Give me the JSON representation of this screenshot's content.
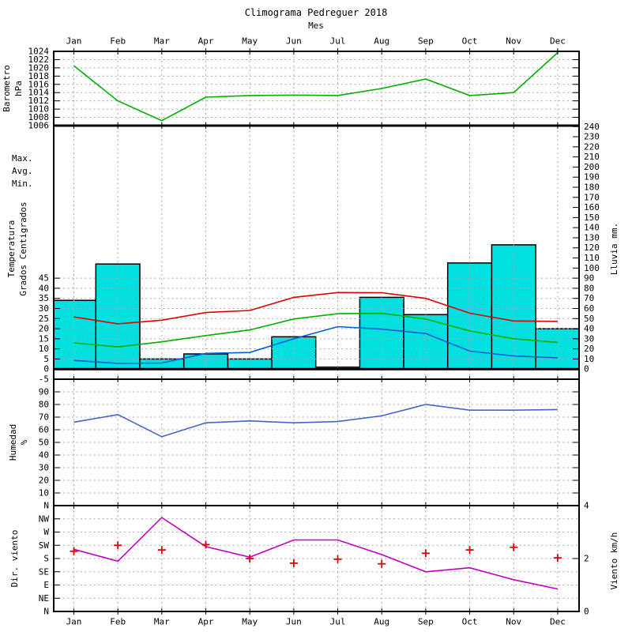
{
  "title": "Climograma Pedreguer 2018",
  "subtitle": "Mes",
  "months": [
    "Jan",
    "Feb",
    "Mar",
    "Apr",
    "May",
    "Jun",
    "Jul",
    "Aug",
    "Sep",
    "Oct",
    "Nov",
    "Dec"
  ],
  "colors": {
    "green": "#00b000",
    "red": "#e00000",
    "blue": "#0060d8",
    "humidity_line": "#4466c8",
    "cyan_fill": "#00e0e0",
    "cyan_label": "#00c8c8",
    "magenta": "#c000c0",
    "orange": "#c06020",
    "grid": "#a8a8a8",
    "axis": "#000000"
  },
  "chart_data": [
    {
      "name": "barometro",
      "type": "line",
      "ylabel_lines": [
        "Barometro",
        "hPa"
      ],
      "color_key": "green",
      "ylim": [
        1006,
        1024
      ],
      "yticks": [
        1006,
        1008,
        1010,
        1012,
        1014,
        1016,
        1018,
        1020,
        1022,
        1024
      ],
      "values": [
        1020.5,
        1012.0,
        1007.2,
        1012.9,
        1013.3,
        1013.4,
        1013.3,
        1015.0,
        1017.3,
        1013.3,
        1014.0,
        1023.7
      ]
    },
    {
      "name": "temperatura-lluvia",
      "type": "line+bar",
      "left_label_lines": [
        "Temperatura",
        "Grados Centigrados"
      ],
      "right_label": "Lluvia mm.",
      "left_ticks": [
        -5,
        0,
        5,
        10,
        15,
        20,
        25,
        30,
        35,
        40,
        45
      ],
      "left_ylim": [
        -5,
        120.5
      ],
      "right_ticks": [
        0,
        10,
        20,
        30,
        40,
        50,
        60,
        70,
        80,
        90,
        100,
        110,
        120,
        130,
        140,
        150,
        160,
        170,
        180,
        190,
        200,
        210,
        220,
        230,
        240
      ],
      "right_ylim": [
        -10,
        241
      ],
      "legend": [
        {
          "label": "Max.",
          "color_key": "red"
        },
        {
          "label": "Avg.",
          "color_key": "green"
        },
        {
          "label": "Min.",
          "color_key": "blue"
        }
      ],
      "series": [
        {
          "name": "Max.",
          "color_key": "red",
          "values": [
            25.8,
            22.4,
            24.2,
            28.0,
            29.0,
            35.5,
            37.9,
            37.8,
            35.0,
            27.7,
            23.8,
            23.6
          ]
        },
        {
          "name": "Avg.",
          "color_key": "green",
          "values": [
            13.0,
            11.0,
            13.5,
            16.6,
            19.4,
            24.8,
            27.4,
            27.6,
            24.8,
            18.9,
            15.0,
            13.2
          ]
        },
        {
          "name": "Min.",
          "color_key": "blue",
          "values": [
            4.3,
            2.8,
            3.0,
            7.8,
            8.2,
            15.0,
            21.0,
            19.8,
            17.6,
            8.9,
            6.5,
            5.6
          ]
        }
      ],
      "bars": {
        "name": "Lluvia (mm)",
        "color_key": "cyan_fill",
        "values": [
          68,
          104,
          10,
          15,
          10,
          32,
          2,
          71,
          54,
          105,
          123,
          40
        ]
      }
    },
    {
      "name": "humedad",
      "type": "line",
      "ylabel_lines": [
        "Humedad",
        "%"
      ],
      "color_key": "humidity_line",
      "ylim": [
        0,
        100
      ],
      "yticks": [
        10,
        20,
        30,
        40,
        50,
        60,
        70,
        80,
        90
      ],
      "values": [
        66,
        72,
        54.5,
        65.5,
        67,
        65.5,
        66.5,
        71,
        80,
        75.5,
        75.5,
        76
      ]
    },
    {
      "name": "viento",
      "type": "scatter+line",
      "left_label": "Dir. viento",
      "right_label": "Viento km/h",
      "directions_top_to_bottom": [
        "N",
        "NW",
        "W",
        "SW",
        "S",
        "SE",
        "E",
        "NE",
        "N"
      ],
      "right_ticks": [
        0,
        2,
        4
      ],
      "right_ylim": [
        0,
        4
      ],
      "dir_markers": {
        "color_key": "red",
        "scale": "0=bottom N, 8=top N",
        "values_0to8": [
          4.55,
          5.0,
          4.65,
          5.05,
          4.0,
          3.65,
          3.95,
          3.6,
          4.4,
          4.65,
          4.85,
          4.05
        ]
      },
      "speed_line": {
        "color_key": "magenta",
        "values": [
          2.35,
          1.9,
          3.55,
          2.45,
          2.05,
          2.7,
          2.7,
          2.15,
          1.5,
          1.65,
          1.2,
          0.85
        ]
      }
    }
  ]
}
